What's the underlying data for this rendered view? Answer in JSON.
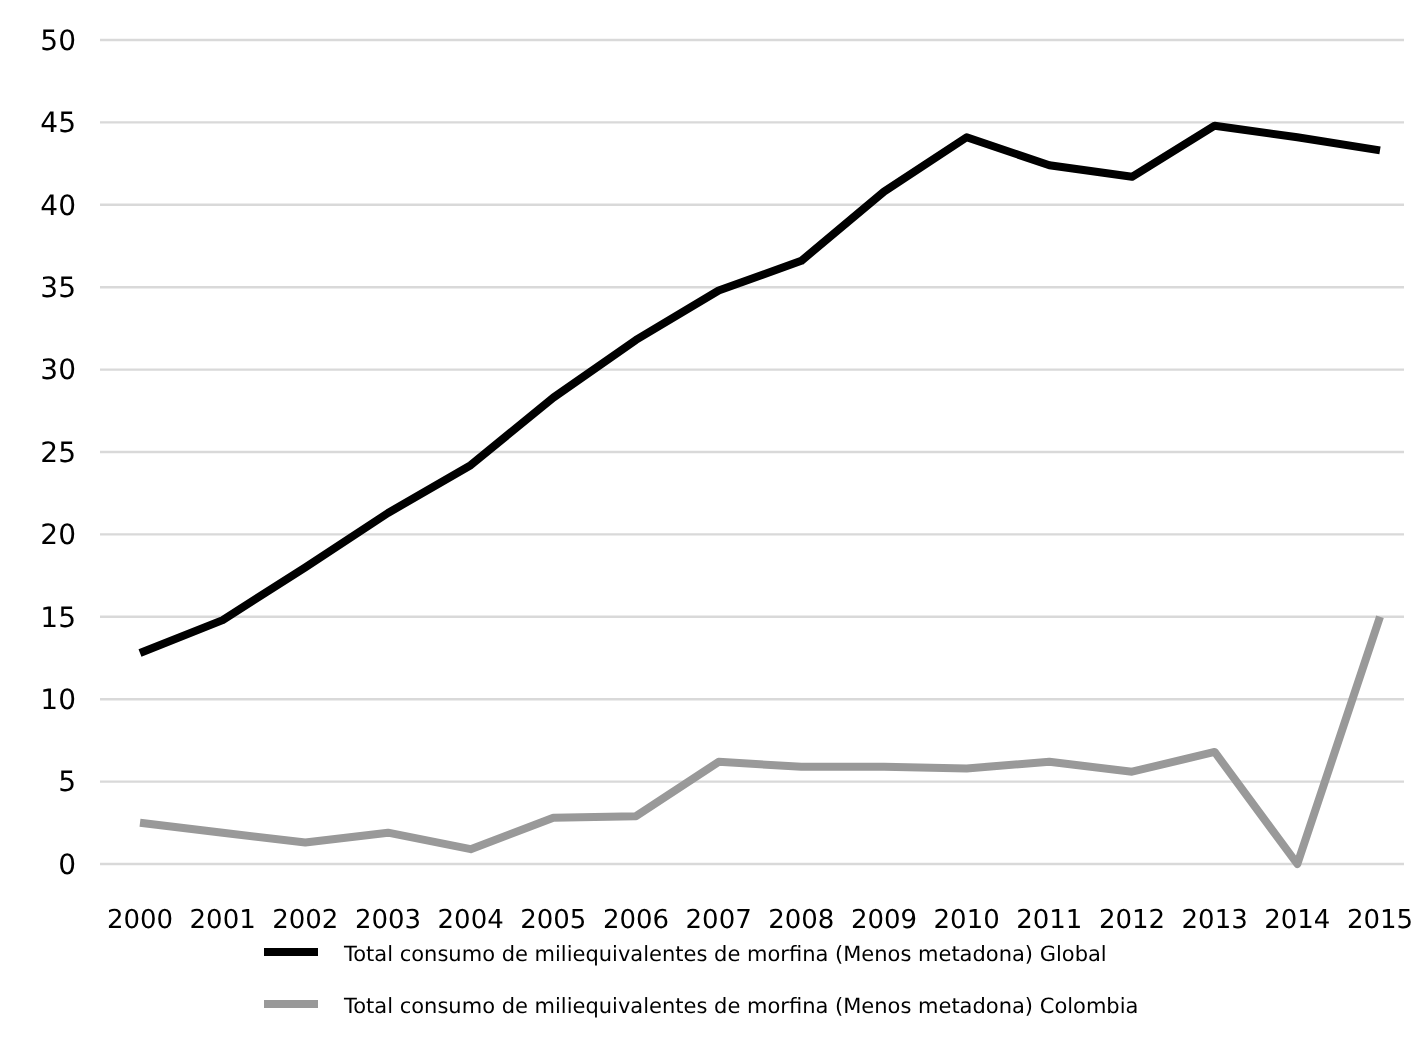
{
  "chart_data": {
    "type": "line",
    "categories": [
      "2000",
      "2001",
      "2002",
      "2003",
      "2004",
      "2005",
      "2006",
      "2007",
      "2008",
      "2009",
      "2010",
      "2011",
      "2012",
      "2013",
      "2014",
      "2015"
    ],
    "series": [
      {
        "name": "Total consumo de miliequivalentes de morfina (Menos metadona)  Global",
        "color": "#000000",
        "values": [
          12.8,
          14.8,
          18,
          21.3,
          24.2,
          28.3,
          31.8,
          34.8,
          36.6,
          40.8,
          44.1,
          42.4,
          41.7,
          44.8,
          44.1,
          43.3
        ]
      },
      {
        "name": "Total consumo de miliequivalentes de morfina (Menos metadona)  Colombia",
        "color": "#999999",
        "values": [
          2.5,
          1.9,
          1.3,
          1.9,
          0.9,
          2.8,
          2.9,
          6.2,
          5.9,
          5.9,
          5.8,
          6.2,
          5.6,
          6.8,
          0,
          15
        ]
      }
    ],
    "ylim": [
      0,
      50
    ],
    "yticks": [
      0,
      5,
      10,
      15,
      20,
      25,
      30,
      35,
      40,
      45,
      50
    ],
    "grid": "y",
    "legend": "bottom",
    "marker": "none",
    "line_style": "solid"
  }
}
